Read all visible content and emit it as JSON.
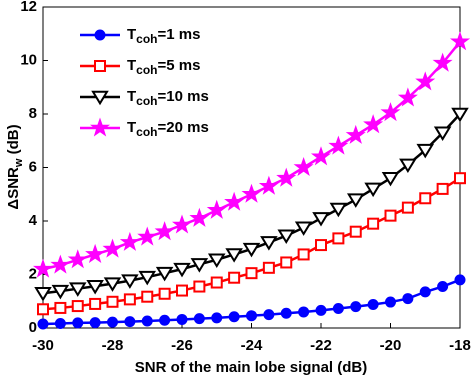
{
  "chart_data": {
    "type": "line",
    "xlabel": "SNR of the main lobe signal (dB)",
    "ylabel": {
      "main": "ΔSNR",
      "sub": "w",
      "unit": " (dB)"
    },
    "x": [
      -30,
      -29.5,
      -29,
      -28.5,
      -28,
      -27.5,
      -27,
      -26.5,
      -26,
      -25.5,
      -25,
      -24.5,
      -24,
      -23.5,
      -23,
      -22.5,
      -22,
      -21.5,
      -21,
      -20.5,
      -20,
      -19.5,
      -19,
      -18.5,
      -18
    ],
    "series": [
      {
        "name": "Tcoh=1 ms",
        "color": "#0000ff",
        "marker": "circle",
        "values": [
          0.15,
          0.17,
          0.19,
          0.2,
          0.22,
          0.24,
          0.26,
          0.29,
          0.32,
          0.35,
          0.38,
          0.42,
          0.46,
          0.5,
          0.55,
          0.6,
          0.66,
          0.73,
          0.8,
          0.88,
          0.97,
          1.1,
          1.35,
          1.55,
          1.8
        ]
      },
      {
        "name": "Tcoh=5 ms",
        "color": "#ff0000",
        "marker": "square",
        "values": [
          0.7,
          0.75,
          0.82,
          0.9,
          0.98,
          1.07,
          1.17,
          1.28,
          1.4,
          1.55,
          1.7,
          1.88,
          2.05,
          2.25,
          2.45,
          2.75,
          3.1,
          3.35,
          3.6,
          3.9,
          4.2,
          4.5,
          4.85,
          5.2,
          5.6
        ]
      },
      {
        "name": "Tcoh=10 ms",
        "color": "#000000",
        "marker": "triangle-down",
        "values": [
          1.3,
          1.38,
          1.47,
          1.56,
          1.66,
          1.77,
          1.9,
          2.05,
          2.2,
          2.38,
          2.55,
          2.75,
          2.95,
          3.2,
          3.45,
          3.75,
          4.1,
          4.45,
          4.8,
          5.2,
          5.6,
          6.1,
          6.65,
          7.3,
          8.0
        ]
      },
      {
        "name": "Tcoh=20 ms",
        "color": "#ff00ff",
        "marker": "star",
        "values": [
          2.2,
          2.35,
          2.55,
          2.75,
          2.95,
          3.2,
          3.4,
          3.6,
          3.85,
          4.1,
          4.4,
          4.7,
          5.0,
          5.3,
          5.6,
          6.0,
          6.4,
          6.8,
          7.2,
          7.6,
          8.05,
          8.6,
          9.2,
          9.9,
          10.7
        ]
      }
    ],
    "xlim": [
      -30,
      -18
    ],
    "xticks": [
      -30,
      -28,
      -26,
      -24,
      -22,
      -20,
      -18
    ],
    "ylim": [
      0,
      12
    ],
    "yticks": [
      0,
      2,
      4,
      6,
      8,
      10,
      12
    ],
    "grid": false,
    "legend": "upper left"
  }
}
